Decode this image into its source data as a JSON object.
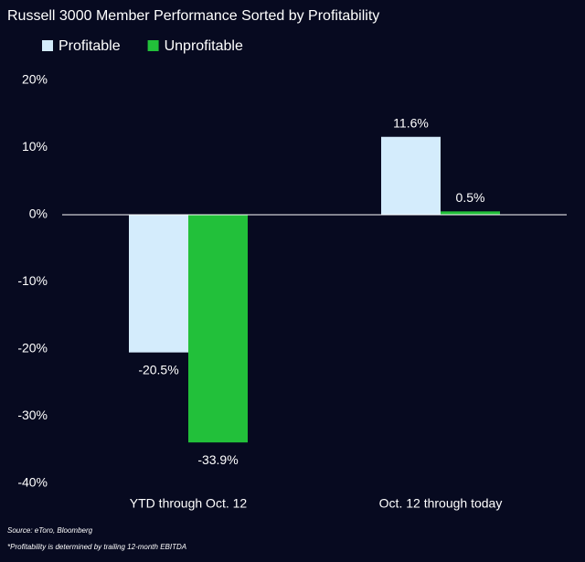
{
  "chart_data": {
    "type": "bar",
    "title": "Russell 3000 Member Performance Sorted by Profitability",
    "categories": [
      "YTD through Oct. 12",
      "Oct. 12 through today"
    ],
    "series": [
      {
        "name": "Profitable",
        "color": "#d4ecfc",
        "values": [
          -20.5,
          11.6
        ],
        "value_labels": [
          "-20.5%",
          "11.6%"
        ]
      },
      {
        "name": "Unprofitable",
        "color": "#22c03a",
        "values": [
          -33.9,
          0.5
        ],
        "value_labels": [
          "-33.9%",
          "0.5%"
        ]
      }
    ],
    "ylim": [
      -40,
      20
    ],
    "yticks": [
      {
        "value": 20,
        "label": "20%"
      },
      {
        "value": 10,
        "label": "10%"
      },
      {
        "value": 0,
        "label": "0%"
      },
      {
        "value": -10,
        "label": "-10%"
      },
      {
        "value": -20,
        "label": "-20%"
      },
      {
        "value": -30,
        "label": "-30%"
      },
      {
        "value": -40,
        "label": "-40%"
      }
    ],
    "grid": false,
    "legend": "top-left",
    "notes": [
      "Source: eToro, Bloomberg",
      "*Profitability is determined by trailing 12-month EBITDA"
    ]
  }
}
